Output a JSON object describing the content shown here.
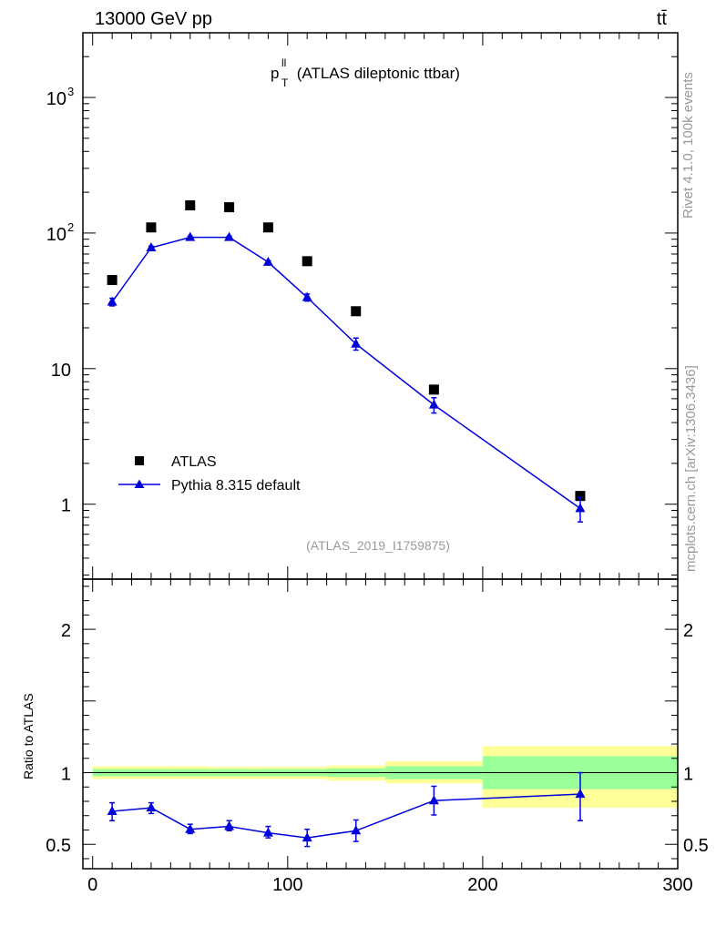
{
  "header": {
    "left_label": "13000 GeV pp",
    "right_label": "tt̄"
  },
  "side_labels": {
    "rivet": "Rivet 4.1.0,  100k events",
    "mcplots": "mcplots.cern.ch [arXiv:1306.3436]"
  },
  "colors": {
    "mc": "#0000dd",
    "data": "#000000",
    "band_inner": "#99ff99",
    "band_outer": "#ffff99",
    "watermark": "#999999"
  },
  "chart_data": [
    {
      "type": "scatter",
      "panel": "main",
      "title_main": "p",
      "title_sup": "ll",
      "title_sub": "T",
      "title_rest": " (ATLAS dileptonic ttbar)",
      "watermark": "(ATLAS_2019_I1759875)",
      "yscale": "log",
      "xlim": [
        -5,
        300
      ],
      "ylim": [
        0.28,
        3000
      ],
      "ytick_labels": [
        {
          "value": 1000,
          "base": "10",
          "exp": "3"
        },
        {
          "value": 100,
          "base": "10",
          "exp": "2"
        },
        {
          "value": 10,
          "base": "10",
          "exp": ""
        },
        {
          "value": 1,
          "base": "1",
          "exp": ""
        }
      ],
      "legend": {
        "position": "lower-left",
        "entries": [
          "ATLAS",
          "Pythia 8.315 default"
        ]
      },
      "series": [
        {
          "name": "ATLAS",
          "marker": "square",
          "x": [
            10,
            30,
            50,
            70,
            90,
            110,
            135,
            175,
            250
          ],
          "y": [
            45,
            110,
            160,
            155,
            110,
            62,
            26.5,
            7,
            1.15
          ]
        },
        {
          "name": "Pythia 8.315 default",
          "marker": "triangle",
          "x": [
            10,
            30,
            50,
            70,
            90,
            110,
            135,
            175,
            250
          ],
          "y": [
            31,
            78,
            93,
            93,
            61,
            33.5,
            15.2,
            5.4,
            0.93
          ],
          "yerr_lo": [
            29,
            75.5,
            91,
            91.5,
            59.5,
            31.5,
            13.7,
            4.7,
            0.74
          ],
          "yerr_hi": [
            33,
            80,
            95,
            95,
            62.5,
            35.5,
            16.8,
            6.1,
            1.12
          ]
        }
      ]
    },
    {
      "type": "line",
      "panel": "ratio",
      "ylabel": "Ratio to ATLAS",
      "xlim": [
        -5,
        300
      ],
      "ylim": [
        0.33,
        2.35
      ],
      "xticks": [
        0,
        100,
        200,
        300
      ],
      "xtick_labels": [
        "0",
        "100",
        "200",
        "300"
      ],
      "yticks": [
        0.5,
        1,
        2
      ],
      "ytick_labels": [
        "0.5",
        "1",
        "2"
      ],
      "bins": [
        {
          "x0": 0,
          "x1": 20,
          "inner_lo": 0.975,
          "inner_hi": 1.025,
          "outer_lo": 0.955,
          "outer_hi": 1.045
        },
        {
          "x0": 20,
          "x1": 40,
          "inner_lo": 0.975,
          "inner_hi": 1.025,
          "outer_lo": 0.955,
          "outer_hi": 1.045
        },
        {
          "x0": 40,
          "x1": 60,
          "inner_lo": 0.975,
          "inner_hi": 1.025,
          "outer_lo": 0.955,
          "outer_hi": 1.045
        },
        {
          "x0": 60,
          "x1": 80,
          "inner_lo": 0.975,
          "inner_hi": 1.025,
          "outer_lo": 0.955,
          "outer_hi": 1.04
        },
        {
          "x0": 80,
          "x1": 100,
          "inner_lo": 0.975,
          "inner_hi": 1.025,
          "outer_lo": 0.955,
          "outer_hi": 1.04
        },
        {
          "x0": 100,
          "x1": 120,
          "inner_lo": 0.975,
          "inner_hi": 1.025,
          "outer_lo": 0.955,
          "outer_hi": 1.04
        },
        {
          "x0": 120,
          "x1": 150,
          "inner_lo": 0.97,
          "inner_hi": 1.03,
          "outer_lo": 0.945,
          "outer_hi": 1.05
        },
        {
          "x0": 150,
          "x1": 200,
          "inner_lo": 0.955,
          "inner_hi": 1.045,
          "outer_lo": 0.925,
          "outer_hi": 1.08
        },
        {
          "x0": 200,
          "x1": 300,
          "inner_lo": 0.885,
          "inner_hi": 1.115,
          "outer_lo": 0.755,
          "outer_hi": 1.185
        }
      ],
      "series": [
        {
          "name": "Pythia 8.315 default",
          "x": [
            10,
            30,
            50,
            70,
            90,
            110,
            135,
            175,
            250
          ],
          "y": [
            0.73,
            0.755,
            0.605,
            0.625,
            0.58,
            0.545,
            0.595,
            0.805,
            0.85
          ],
          "yerr_lo": [
            0.665,
            0.715,
            0.575,
            0.595,
            0.545,
            0.485,
            0.52,
            0.705,
            0.665
          ],
          "yerr_hi": [
            0.79,
            0.79,
            0.64,
            0.665,
            0.625,
            0.605,
            0.67,
            0.905,
            1.0
          ]
        }
      ]
    }
  ]
}
